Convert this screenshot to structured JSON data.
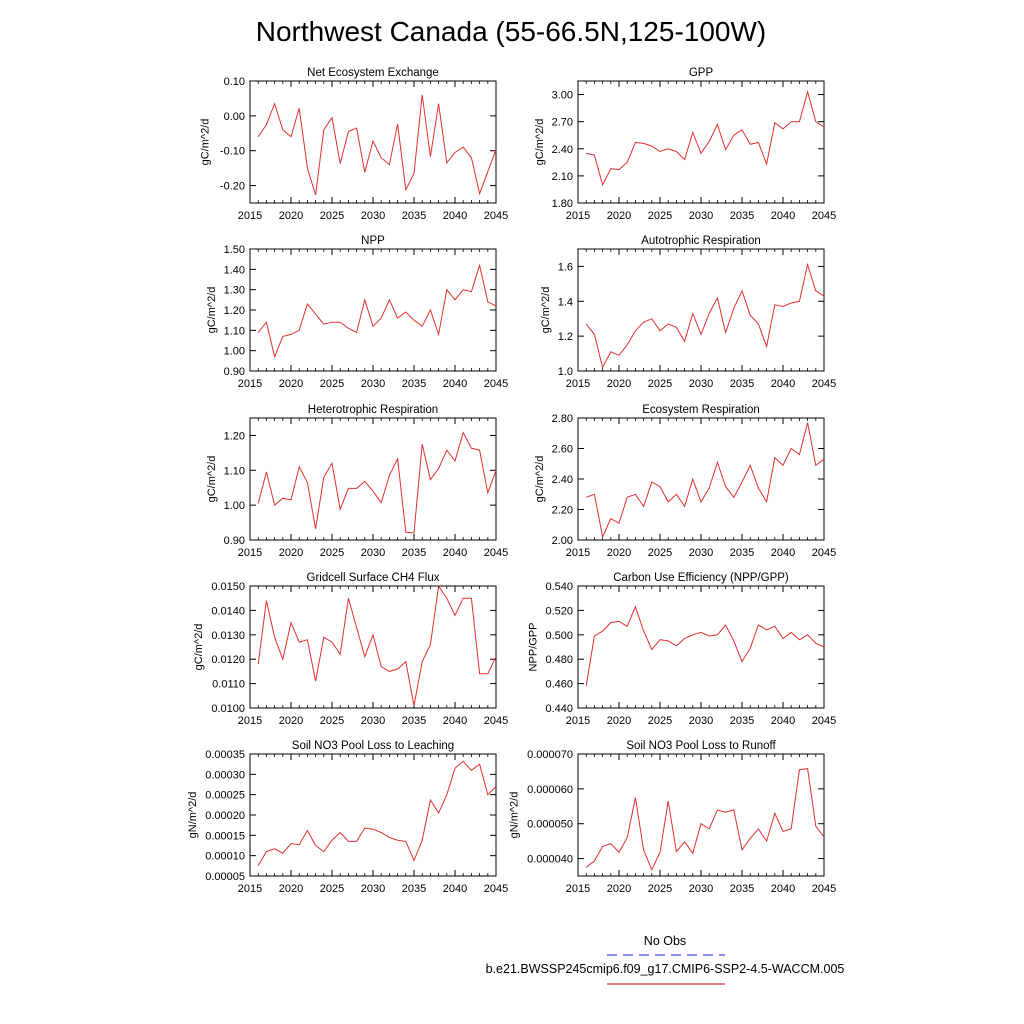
{
  "figure_title": "Northwest Canada (55-66.5N,125-100W)",
  "legend": {
    "obs_label": "No Obs",
    "obs_color": "#4a4ae0",
    "model_label": "b.e21.BWSSP245cmip6.f09_g17.CMIP6-SSP2-4.5-WACCM.005",
    "model_color": "#e03030"
  },
  "chart_data": [
    {
      "type": "line",
      "title": "Net Ecosystem Exchange",
      "ylabel": "gC/m^2/d",
      "xlabel": "",
      "xlim": [
        2015,
        2045
      ],
      "xticks": [
        2015,
        2020,
        2025,
        2030,
        2035,
        2040,
        2045
      ],
      "xticklabels": [
        "2015",
        "2020",
        "2025",
        "2030",
        "2035",
        "2040",
        "2045"
      ],
      "ylim": [
        -0.25,
        0.1
      ],
      "yticks": [
        -0.2,
        -0.1,
        0.0,
        0.1
      ],
      "yticklabels": [
        "-0.20",
        "-0.10",
        "0.00",
        "0.10"
      ],
      "x": [
        2016,
        2017,
        2018,
        2019,
        2020,
        2021,
        2022,
        2023,
        2024,
        2025,
        2026,
        2027,
        2028,
        2029,
        2030,
        2031,
        2032,
        2033,
        2034,
        2035,
        2036,
        2037,
        2038,
        2039,
        2040,
        2041,
        2042,
        2043,
        2044,
        2045
      ],
      "series": [
        {
          "name": "b.e21.BWSSP245cmip6.f09_g17.CMIP6-SSP2-4.5-WACCM.005",
          "color": "#e03030",
          "values": [
            -0.06,
            -0.025,
            0.035,
            -0.04,
            -0.06,
            0.022,
            -0.15,
            -0.227,
            -0.04,
            -0.005,
            -0.137,
            -0.045,
            -0.035,
            -0.162,
            -0.072,
            -0.12,
            -0.14,
            -0.023,
            -0.212,
            -0.165,
            0.06,
            -0.117,
            0.035,
            -0.135,
            -0.105,
            -0.09,
            -0.12,
            -0.223,
            -0.16,
            -0.097
          ]
        }
      ]
    },
    {
      "type": "line",
      "title": "GPP",
      "ylabel": "gC/m^2/d",
      "xlabel": "",
      "xlim": [
        2015,
        2045
      ],
      "xticks": [
        2015,
        2020,
        2025,
        2030,
        2035,
        2040,
        2045
      ],
      "xticklabels": [
        "2015",
        "2020",
        "2025",
        "2030",
        "2035",
        "2040",
        "2045"
      ],
      "ylim": [
        1.8,
        3.15
      ],
      "yticks": [
        1.8,
        2.1,
        2.4,
        2.7,
        3.0
      ],
      "yticklabels": [
        "1.80",
        "2.10",
        "2.40",
        "2.70",
        "3.00"
      ],
      "x": [
        2016,
        2017,
        2018,
        2019,
        2020,
        2021,
        2022,
        2023,
        2024,
        2025,
        2026,
        2027,
        2028,
        2029,
        2030,
        2031,
        2032,
        2033,
        2034,
        2035,
        2036,
        2037,
        2038,
        2039,
        2040,
        2041,
        2042,
        2043,
        2044,
        2045
      ],
      "series": [
        {
          "name": "b.e21.BWSSP245cmip6.f09_g17.CMIP6-SSP2-4.5-WACCM.005",
          "color": "#e03030",
          "values": [
            2.35,
            2.33,
            2.0,
            2.18,
            2.17,
            2.25,
            2.47,
            2.46,
            2.43,
            2.37,
            2.4,
            2.37,
            2.28,
            2.58,
            2.35,
            2.48,
            2.67,
            2.39,
            2.55,
            2.61,
            2.45,
            2.47,
            2.23,
            2.69,
            2.62,
            2.7,
            2.7,
            3.03,
            2.7,
            2.64
          ]
        }
      ]
    },
    {
      "type": "line",
      "title": "NPP",
      "ylabel": "gC/m^2/d",
      "xlabel": "",
      "xlim": [
        2015,
        2045
      ],
      "xticks": [
        2015,
        2020,
        2025,
        2030,
        2035,
        2040,
        2045
      ],
      "xticklabels": [
        "2015",
        "2020",
        "2025",
        "2030",
        "2035",
        "2040",
        "2045"
      ],
      "ylim": [
        0.9,
        1.5
      ],
      "yticks": [
        0.9,
        1.0,
        1.1,
        1.2,
        1.3,
        1.4,
        1.5
      ],
      "yticklabels": [
        "0.90",
        "1.00",
        "1.10",
        "1.20",
        "1.30",
        "1.40",
        "1.50"
      ],
      "x": [
        2016,
        2017,
        2018,
        2019,
        2020,
        2021,
        2022,
        2023,
        2024,
        2025,
        2026,
        2027,
        2028,
        2029,
        2030,
        2031,
        2032,
        2033,
        2034,
        2035,
        2036,
        2037,
        2038,
        2039,
        2040,
        2041,
        2042,
        2043,
        2044,
        2045
      ],
      "series": [
        {
          "name": "b.e21.BWSSP245cmip6.f09_g17.CMIP6-SSP2-4.5-WACCM.005",
          "color": "#e03030",
          "values": [
            1.09,
            1.14,
            0.97,
            1.07,
            1.08,
            1.1,
            1.23,
            1.18,
            1.13,
            1.14,
            1.14,
            1.11,
            1.09,
            1.25,
            1.12,
            1.16,
            1.25,
            1.16,
            1.19,
            1.15,
            1.12,
            1.2,
            1.08,
            1.3,
            1.25,
            1.3,
            1.29,
            1.42,
            1.24,
            1.22
          ]
        }
      ]
    },
    {
      "type": "line",
      "title": "Autotrophic Respiration",
      "ylabel": "gC/m^2/d",
      "xlabel": "",
      "xlim": [
        2015,
        2045
      ],
      "xticks": [
        2015,
        2020,
        2025,
        2030,
        2035,
        2040,
        2045
      ],
      "xticklabels": [
        "2015",
        "2020",
        "2025",
        "2030",
        "2035",
        "2040",
        "2045"
      ],
      "ylim": [
        1.0,
        1.7
      ],
      "yticks": [
        1.0,
        1.2,
        1.4,
        1.6
      ],
      "yticklabels": [
        "1.0",
        "1.2",
        "1.4",
        "1.6"
      ],
      "x": [
        2016,
        2017,
        2018,
        2019,
        2020,
        2021,
        2022,
        2023,
        2024,
        2025,
        2026,
        2027,
        2028,
        2029,
        2030,
        2031,
        2032,
        2033,
        2034,
        2035,
        2036,
        2037,
        2038,
        2039,
        2040,
        2041,
        2042,
        2043,
        2044,
        2045
      ],
      "series": [
        {
          "name": "b.e21.BWSSP245cmip6.f09_g17.CMIP6-SSP2-4.5-WACCM.005",
          "color": "#e03030",
          "values": [
            1.27,
            1.21,
            1.02,
            1.11,
            1.09,
            1.15,
            1.23,
            1.28,
            1.3,
            1.23,
            1.27,
            1.25,
            1.17,
            1.33,
            1.21,
            1.33,
            1.42,
            1.22,
            1.36,
            1.46,
            1.32,
            1.27,
            1.14,
            1.38,
            1.37,
            1.39,
            1.4,
            1.61,
            1.46,
            1.43
          ]
        }
      ]
    },
    {
      "type": "line",
      "title": "Heterotrophic Respiration",
      "ylabel": "gC/m^2/d",
      "xlabel": "",
      "xlim": [
        2015,
        2045
      ],
      "xticks": [
        2015,
        2020,
        2025,
        2030,
        2035,
        2040,
        2045
      ],
      "xticklabels": [
        "2015",
        "2020",
        "2025",
        "2030",
        "2035",
        "2040",
        "2045"
      ],
      "ylim": [
        0.9,
        1.25
      ],
      "yticks": [
        0.9,
        1.0,
        1.1,
        1.2
      ],
      "yticklabels": [
        "0.90",
        "1.00",
        "1.10",
        "1.20"
      ],
      "x": [
        2016,
        2017,
        2018,
        2019,
        2020,
        2021,
        2022,
        2023,
        2024,
        2025,
        2026,
        2027,
        2028,
        2029,
        2030,
        2031,
        2032,
        2033,
        2034,
        2035,
        2036,
        2037,
        2038,
        2039,
        2040,
        2041,
        2042,
        2043,
        2044,
        2045
      ],
      "series": [
        {
          "name": "b.e21.BWSSP245cmip6.f09_g17.CMIP6-SSP2-4.5-WACCM.005",
          "color": "#e03030",
          "values": [
            1.005,
            1.095,
            1.0,
            1.02,
            1.015,
            1.11,
            1.065,
            0.932,
            1.08,
            1.12,
            0.988,
            1.048,
            1.048,
            1.068,
            1.04,
            1.007,
            1.085,
            1.133,
            0.922,
            0.92,
            1.175,
            1.073,
            1.105,
            1.158,
            1.127,
            1.208,
            1.163,
            1.158,
            1.035,
            1.1
          ]
        }
      ]
    },
    {
      "type": "line",
      "title": "Ecosystem Respiration",
      "ylabel": "gC/m^2/d",
      "xlabel": "",
      "xlim": [
        2015,
        2045
      ],
      "xticks": [
        2015,
        2020,
        2025,
        2030,
        2035,
        2040,
        2045
      ],
      "xticklabels": [
        "2015",
        "2020",
        "2025",
        "2030",
        "2035",
        "2040",
        "2045"
      ],
      "ylim": [
        2.0,
        2.8
      ],
      "yticks": [
        2.0,
        2.2,
        2.4,
        2.6,
        2.8
      ],
      "yticklabels": [
        "2.00",
        "2.20",
        "2.40",
        "2.60",
        "2.80"
      ],
      "x": [
        2016,
        2017,
        2018,
        2019,
        2020,
        2021,
        2022,
        2023,
        2024,
        2025,
        2026,
        2027,
        2028,
        2029,
        2030,
        2031,
        2032,
        2033,
        2034,
        2035,
        2036,
        2037,
        2038,
        2039,
        2040,
        2041,
        2042,
        2043,
        2044,
        2045
      ],
      "series": [
        {
          "name": "b.e21.BWSSP245cmip6.f09_g17.CMIP6-SSP2-4.5-WACCM.005",
          "color": "#e03030",
          "values": [
            2.28,
            2.3,
            2.02,
            2.14,
            2.11,
            2.28,
            2.3,
            2.22,
            2.38,
            2.35,
            2.25,
            2.3,
            2.22,
            2.4,
            2.25,
            2.34,
            2.51,
            2.35,
            2.28,
            2.38,
            2.49,
            2.34,
            2.25,
            2.54,
            2.49,
            2.6,
            2.56,
            2.77,
            2.49,
            2.53
          ]
        }
      ]
    },
    {
      "type": "line",
      "title": "Gridcell Surface CH4 Flux",
      "ylabel": "gC/m^2/d",
      "xlabel": "",
      "xlim": [
        2015,
        2045
      ],
      "xticks": [
        2015,
        2020,
        2025,
        2030,
        2035,
        2040,
        2045
      ],
      "xticklabels": [
        "2015",
        "2020",
        "2025",
        "2030",
        "2035",
        "2040",
        "2045"
      ],
      "ylim": [
        0.01,
        0.015
      ],
      "yticks": [
        0.01,
        0.011,
        0.012,
        0.013,
        0.014,
        0.015
      ],
      "yticklabels": [
        "0.0100",
        "0.0110",
        "0.0120",
        "0.0130",
        "0.0140",
        "0.0150"
      ],
      "x": [
        2016,
        2017,
        2018,
        2019,
        2020,
        2021,
        2022,
        2023,
        2024,
        2025,
        2026,
        2027,
        2028,
        2029,
        2030,
        2031,
        2032,
        2033,
        2034,
        2035,
        2036,
        2037,
        2038,
        2039,
        2040,
        2041,
        2042,
        2043,
        2044,
        2045
      ],
      "series": [
        {
          "name": "b.e21.BWSSP245cmip6.f09_g17.CMIP6-SSP2-4.5-WACCM.005",
          "color": "#e03030",
          "values": [
            0.0118,
            0.0144,
            0.0129,
            0.012,
            0.0135,
            0.0127,
            0.0128,
            0.0111,
            0.0129,
            0.0127,
            0.0122,
            0.0145,
            0.0133,
            0.0121,
            0.013,
            0.0117,
            0.0115,
            0.0116,
            0.0119,
            0.0101,
            0.0119,
            0.0126,
            0.015,
            0.0145,
            0.0138,
            0.0145,
            0.0145,
            0.0114,
            0.0114,
            0.0121
          ]
        }
      ]
    },
    {
      "type": "line",
      "title": "Carbon Use Efficiency (NPP/GPP)",
      "ylabel": "NPP/GPP",
      "xlabel": "",
      "xlim": [
        2015,
        2045
      ],
      "xticks": [
        2015,
        2020,
        2025,
        2030,
        2035,
        2040,
        2045
      ],
      "xticklabels": [
        "2015",
        "2020",
        "2025",
        "2030",
        "2035",
        "2040",
        "2045"
      ],
      "ylim": [
        0.44,
        0.54
      ],
      "yticks": [
        0.44,
        0.46,
        0.48,
        0.5,
        0.52,
        0.54
      ],
      "yticklabels": [
        "0.440",
        "0.460",
        "0.480",
        "0.500",
        "0.520",
        "0.540"
      ],
      "x": [
        2016,
        2017,
        2018,
        2019,
        2020,
        2021,
        2022,
        2023,
        2024,
        2025,
        2026,
        2027,
        2028,
        2029,
        2030,
        2031,
        2032,
        2033,
        2034,
        2035,
        2036,
        2037,
        2038,
        2039,
        2040,
        2041,
        2042,
        2043,
        2044,
        2045
      ],
      "series": [
        {
          "name": "b.e21.BWSSP245cmip6.f09_g17.CMIP6-SSP2-4.5-WACCM.005",
          "color": "#e03030",
          "values": [
            0.458,
            0.499,
            0.503,
            0.51,
            0.511,
            0.507,
            0.523,
            0.503,
            0.488,
            0.496,
            0.495,
            0.491,
            0.497,
            0.5,
            0.502,
            0.499,
            0.5,
            0.508,
            0.495,
            0.478,
            0.489,
            0.508,
            0.504,
            0.507,
            0.497,
            0.502,
            0.496,
            0.5,
            0.493,
            0.49
          ]
        }
      ]
    },
    {
      "type": "line",
      "title": "Soil NO3 Pool Loss to Leaching",
      "ylabel": "gN/m^2/d",
      "xlabel": "",
      "xlim": [
        2015,
        2045
      ],
      "xticks": [
        2015,
        2020,
        2025,
        2030,
        2035,
        2040,
        2045
      ],
      "xticklabels": [
        "2015",
        "2020",
        "2025",
        "2030",
        "2035",
        "2040",
        "2045"
      ],
      "ylim": [
        5e-05,
        0.00035
      ],
      "yticks": [
        5e-05,
        0.0001,
        0.00015,
        0.0002,
        0.00025,
        0.0003,
        0.00035
      ],
      "yticklabels": [
        "0.00005",
        "0.00010",
        "0.00015",
        "0.00020",
        "0.00025",
        "0.00030",
        "0.00035"
      ],
      "x": [
        2016,
        2017,
        2018,
        2019,
        2020,
        2021,
        2022,
        2023,
        2024,
        2025,
        2026,
        2027,
        2028,
        2029,
        2030,
        2031,
        2032,
        2033,
        2034,
        2035,
        2036,
        2037,
        2038,
        2039,
        2040,
        2041,
        2042,
        2043,
        2044,
        2045
      ],
      "series": [
        {
          "name": "b.e21.BWSSP245cmip6.f09_g17.CMIP6-SSP2-4.5-WACCM.005",
          "color": "#e03030",
          "values": [
            7.5e-05,
            0.00011,
            0.000117,
            0.000106,
            0.00013,
            0.000127,
            0.000162,
            0.000125,
            0.00011,
            0.000138,
            0.000157,
            0.000135,
            0.000135,
            0.000168,
            0.000165,
            0.000157,
            0.000145,
            0.000138,
            0.000135,
            8.8e-05,
            0.000138,
            0.000237,
            0.000205,
            0.00025,
            0.000315,
            0.000332,
            0.00031,
            0.000325,
            0.00025,
            0.00027
          ]
        }
      ]
    },
    {
      "type": "line",
      "title": "Soil NO3 Pool Loss to Runoff",
      "ylabel": "gN/m^2/d",
      "xlabel": "",
      "xlim": [
        2015,
        2045
      ],
      "xticks": [
        2015,
        2020,
        2025,
        2030,
        2035,
        2040,
        2045
      ],
      "xticklabels": [
        "2015",
        "2020",
        "2025",
        "2030",
        "2035",
        "2040",
        "2045"
      ],
      "ylim": [
        3.5e-05,
        7e-05
      ],
      "yticks": [
        4e-05,
        5e-05,
        6e-05,
        7e-05
      ],
      "yticklabels": [
        "0.000040",
        "0.000050",
        "0.000060",
        "0.000070"
      ],
      "x": [
        2016,
        2017,
        2018,
        2019,
        2020,
        2021,
        2022,
        2023,
        2024,
        2025,
        2026,
        2027,
        2028,
        2029,
        2030,
        2031,
        2032,
        2033,
        2034,
        2035,
        2036,
        2037,
        2038,
        2039,
        2040,
        2041,
        2042,
        2043,
        2044,
        2045
      ],
      "series": [
        {
          "name": "b.e21.BWSSP245cmip6.f09_g17.CMIP6-SSP2-4.5-WACCM.005",
          "color": "#e03030",
          "values": [
            3.75e-05,
            3.93e-05,
            4.35e-05,
            4.43e-05,
            4.18e-05,
            4.6e-05,
            5.75e-05,
            4.25e-05,
            3.68e-05,
            4.18e-05,
            5.65e-05,
            4.2e-05,
            4.48e-05,
            4.15e-05,
            5e-05,
            4.85e-05,
            5.4e-05,
            5.33e-05,
            5.4e-05,
            4.25e-05,
            4.58e-05,
            4.85e-05,
            4.5e-05,
            5.3e-05,
            4.78e-05,
            4.85e-05,
            6.55e-05,
            6.58e-05,
            4.93e-05,
            4.62e-05
          ]
        }
      ]
    }
  ]
}
